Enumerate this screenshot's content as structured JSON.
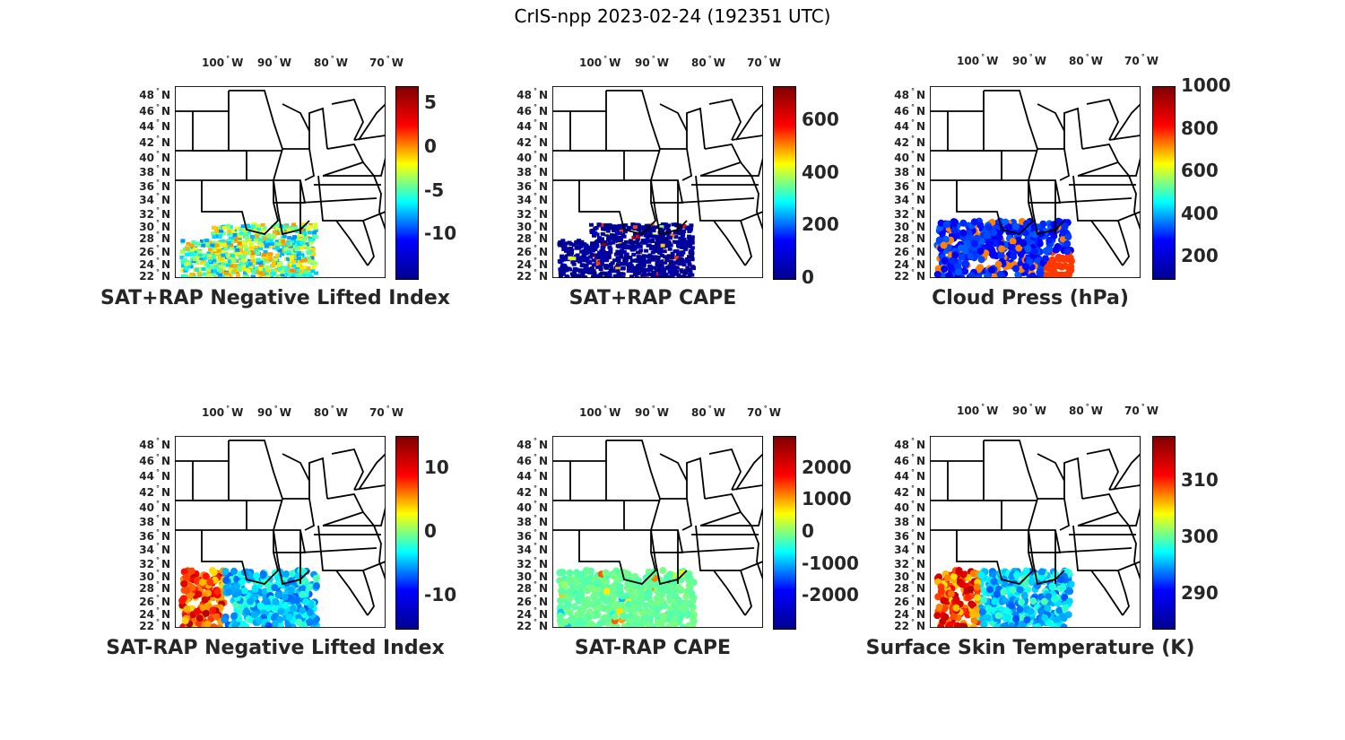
{
  "title": "CrIS-npp 2023-02-24 (192351 UTC)",
  "lon_labels": [
    "100",
    "90",
    "80",
    "70"
  ],
  "lon_suffix": "W",
  "lat_labels": [
    "48",
    "46",
    "44",
    "42",
    "40",
    "38",
    "36",
    "34",
    "32",
    "30",
    "28",
    "26",
    "24",
    "22"
  ],
  "lat_suffix": "N",
  "colormap": "jet",
  "panels": [
    {
      "id": "p1",
      "title": "SAT+RAP Negative Lifted Index",
      "colorbar": {
        "min": -15,
        "max": 7,
        "ticks": [
          {
            "v": 5,
            "label": "5"
          },
          {
            "v": 0,
            "label": "0"
          },
          {
            "v": -5,
            "label": "-5"
          },
          {
            "v": -10,
            "label": "-10"
          }
        ]
      },
      "field": "dense_swath_mixed"
    },
    {
      "id": "p2",
      "title": "SAT+RAP CAPE",
      "colorbar": {
        "min": 0,
        "max": 730,
        "ticks": [
          {
            "v": 600,
            "label": "600"
          },
          {
            "v": 400,
            "label": "400"
          },
          {
            "v": 200,
            "label": "200"
          },
          {
            "v": 0,
            "label": "0"
          }
        ]
      },
      "field": "dense_swath_low"
    },
    {
      "id": "p3",
      "title": "Cloud Press (hPa)",
      "colorbar": {
        "min": 100,
        "max": 1000,
        "ticks": [
          {
            "v": 1000,
            "label": "1000"
          },
          {
            "v": 800,
            "label": "800"
          },
          {
            "v": 600,
            "label": "600"
          },
          {
            "v": 400,
            "label": "400"
          },
          {
            "v": 200,
            "label": "200"
          }
        ]
      },
      "field": "dots_blue_orange"
    },
    {
      "id": "p4",
      "title": "SAT-RAP Negative Lifted Index",
      "colorbar": {
        "min": -15,
        "max": 15,
        "ticks": [
          {
            "v": 10,
            "label": "10"
          },
          {
            "v": 0,
            "label": "0"
          },
          {
            "v": -10,
            "label": "-10"
          }
        ]
      },
      "field": "dots_warm_west_cool_east"
    },
    {
      "id": "p5",
      "title": "SAT-RAP CAPE",
      "colorbar": {
        "min": -3000,
        "max": 3000,
        "ticks": [
          {
            "v": 2000,
            "label": "2000"
          },
          {
            "v": 1000,
            "label": "1000"
          },
          {
            "v": 0,
            "label": "0"
          },
          {
            "v": -1000,
            "label": "-1000"
          },
          {
            "v": -2000,
            "label": "-2000"
          }
        ]
      },
      "field": "dots_green"
    },
    {
      "id": "p6",
      "title": "Surface Skin Temperature (K)",
      "colorbar": {
        "min": 284,
        "max": 318,
        "ticks": [
          {
            "v": 310,
            "label": "310"
          },
          {
            "v": 300,
            "label": "300"
          },
          {
            "v": 290,
            "label": "290"
          }
        ]
      },
      "field": "dots_warm_west_cool_east"
    }
  ]
}
